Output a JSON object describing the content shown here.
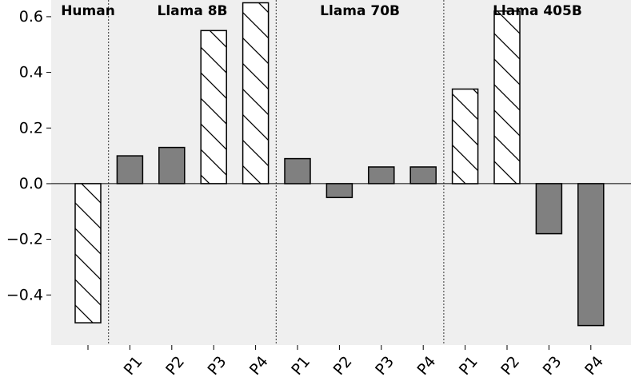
{
  "chart_data": {
    "type": "bar",
    "title": "",
    "xlabel": "",
    "ylabel": "",
    "ylim": [
      -0.58,
      0.66
    ],
    "yticks": [
      -0.4,
      -0.2,
      0.0,
      0.2,
      0.4,
      0.6
    ],
    "ytick_labels": [
      "−0.4",
      "−0.2",
      "0.0",
      "0.2",
      "0.4",
      "0.6"
    ],
    "grid": false,
    "background": "#efefef",
    "zero_line": true,
    "groups": [
      {
        "label": "Human",
        "bars": [
          {
            "category": "",
            "value": -0.5,
            "style": "hatched"
          }
        ]
      },
      {
        "label": "Llama 8B",
        "bars": [
          {
            "category": "P1",
            "value": 0.1,
            "style": "solid"
          },
          {
            "category": "P2",
            "value": 0.13,
            "style": "solid"
          },
          {
            "category": "P3",
            "value": 0.55,
            "style": "hatched"
          },
          {
            "category": "P4",
            "value": 0.65,
            "style": "hatched"
          }
        ]
      },
      {
        "label": "Llama 70B",
        "bars": [
          {
            "category": "P1",
            "value": 0.09,
            "style": "solid"
          },
          {
            "category": "P2",
            "value": -0.05,
            "style": "solid"
          },
          {
            "category": "P3",
            "value": 0.06,
            "style": "solid"
          },
          {
            "category": "P4",
            "value": 0.06,
            "style": "solid"
          }
        ]
      },
      {
        "label": "Llama 405B",
        "bars": [
          {
            "category": "P1",
            "value": 0.34,
            "style": "hatched"
          },
          {
            "category": "P2",
            "value": 0.62,
            "style": "hatched"
          },
          {
            "category": "P3",
            "value": -0.18,
            "style": "solid"
          },
          {
            "category": "P4",
            "value": -0.51,
            "style": "solid"
          }
        ]
      }
    ],
    "colors": {
      "solid_fill": "#808080",
      "hatched_fill": "#ffffff",
      "bar_edge": "#000000",
      "separator": "#333333"
    }
  }
}
